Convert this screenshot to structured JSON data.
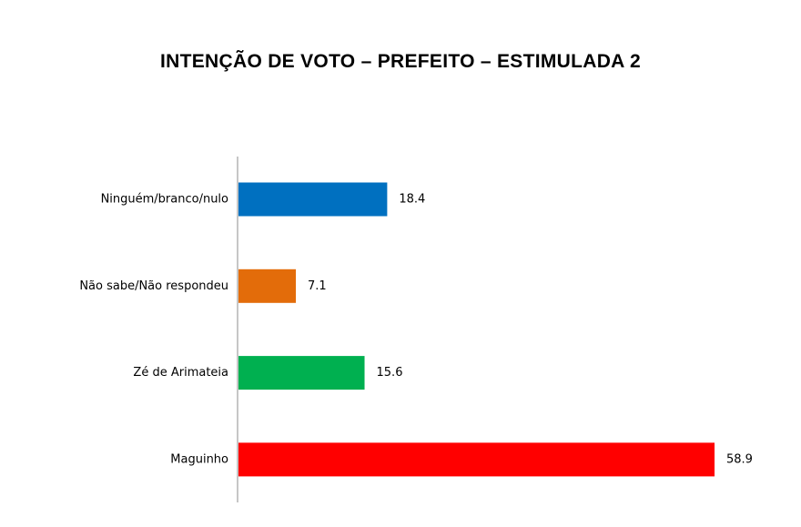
{
  "chart_data": {
    "type": "bar",
    "orientation": "horizontal",
    "title": "INTENÇÃO DE VOTO – PREFEITO – ESTIMULADA 2",
    "categories": [
      "Ninguém/branco/nulo",
      "Não sabe/Não respondeu",
      "Zé de Arimateia",
      "Maguinho"
    ],
    "values": [
      18.4,
      7.1,
      15.6,
      58.9
    ],
    "value_labels": [
      "18.4",
      "7.1",
      "15.6",
      "58.9"
    ],
    "colors": [
      "#0070C0",
      "#E36C0A",
      "#00B050",
      "#FF0000"
    ],
    "xlabel": "",
    "ylabel": "",
    "xlim": [
      0,
      60
    ],
    "grid": false,
    "legend": "none"
  }
}
